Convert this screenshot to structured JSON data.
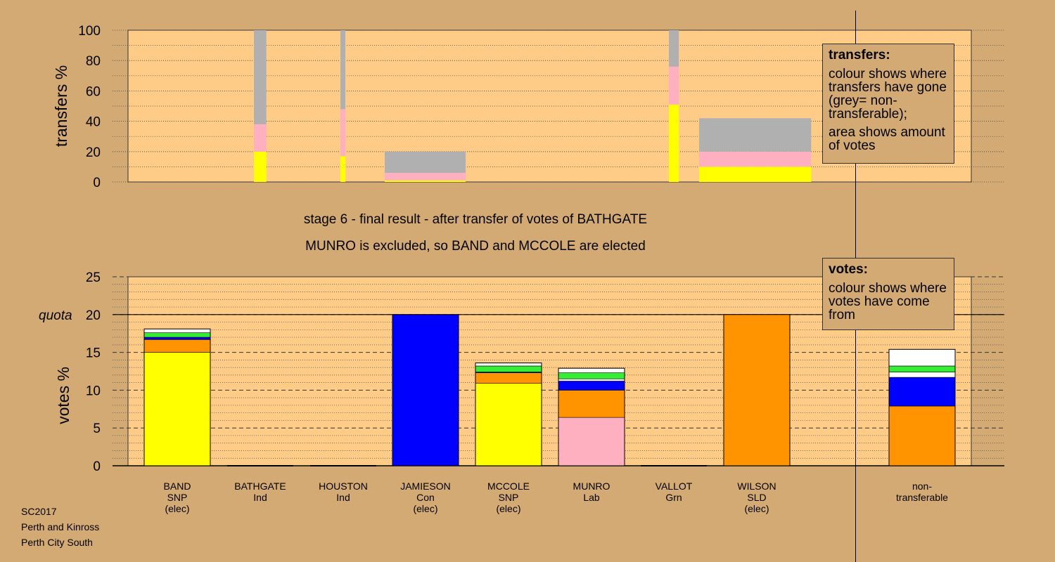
{
  "colors": {
    "background": "#d4aa74",
    "plot_area": "#ffcc88",
    "yellow": "#ffff00",
    "pink": "#ffb0c0",
    "grey": "#b0b0b0",
    "blue": "#0000ff",
    "orange": "#ff9400",
    "green": "#33ee33",
    "white": "#ffffff",
    "black": "#000000"
  },
  "captions": {
    "line1": "stage 6 - final result - after transfer of votes of BATHGATE",
    "line2": "MUNRO is excluded, so BAND and MCCOLE are elected"
  },
  "legends": {
    "transfers": {
      "title": "transfers:",
      "text1": "colour shows where transfers have gone (grey= non-transferable);",
      "text2": "area shows amount of votes"
    },
    "votes": {
      "title": "votes:",
      "text1": "colour shows where votes have come from"
    }
  },
  "footer": {
    "line1": "SC2017",
    "line2": "Perth and Kinross",
    "line3": "Perth City South"
  },
  "candidates": [
    {
      "name": "BAND",
      "party": "SNP",
      "status": "(elec)"
    },
    {
      "name": "BATHGATE",
      "party": "Ind",
      "status": ""
    },
    {
      "name": "HOUSTON",
      "party": "Ind",
      "status": ""
    },
    {
      "name": "JAMIESON",
      "party": "Con",
      "status": "(elec)"
    },
    {
      "name": "MCCOLE",
      "party": "SNP",
      "status": "(elec)"
    },
    {
      "name": "MUNRO",
      "party": "Lab",
      "status": ""
    },
    {
      "name": "VALLOT",
      "party": "Grn",
      "status": ""
    },
    {
      "name": "WILSON",
      "party": "SLD",
      "status": "(elec)"
    },
    {
      "name": "non-",
      "party": "transferable",
      "status": ""
    }
  ],
  "chart_data": [
    {
      "type": "bar",
      "ylabel": "transfers %",
      "ylim": [
        0,
        100
      ],
      "yticks": [
        0,
        20,
        40,
        60,
        80,
        100
      ],
      "grid": true,
      "note": "stacked transfer bars; bar width proportional to amount of votes transferred",
      "bars": [
        {
          "relative_width": 1.0,
          "segments": [
            {
              "color": "yellow",
              "value": 20
            },
            {
              "color": "pink",
              "value": 18
            },
            {
              "color": "grey",
              "value": 62
            }
          ]
        },
        {
          "relative_width": 0.4,
          "segments": [
            {
              "color": "yellow",
              "value": 17
            },
            {
              "color": "pink",
              "value": 31
            },
            {
              "color": "grey",
              "value": 52
            }
          ]
        },
        {
          "relative_width": 6.5,
          "segments": [
            {
              "color": "yellow",
              "value": 1
            },
            {
              "color": "pink",
              "value": 5
            },
            {
              "color": "grey",
              "value": 14
            }
          ]
        },
        {
          "relative_width": 0.8,
          "segments": [
            {
              "color": "yellow",
              "value": 51
            },
            {
              "color": "pink",
              "value": 25
            },
            {
              "color": "grey",
              "value": 24
            }
          ]
        },
        {
          "relative_width": 9.0,
          "segments": [
            {
              "color": "yellow",
              "value": 10
            },
            {
              "color": "pink",
              "value": 10
            },
            {
              "color": "grey",
              "value": 22
            }
          ]
        }
      ]
    },
    {
      "type": "bar",
      "ylabel": "votes %",
      "ylim": [
        0,
        25
      ],
      "yticks": [
        0,
        5,
        10,
        15,
        20,
        25
      ],
      "quota": {
        "label": "quota",
        "value": 20
      },
      "grid": true,
      "categories": [
        "BAND",
        "BATHGATE",
        "HOUSTON",
        "JAMIESON",
        "MCCOLE",
        "MUNRO",
        "VALLOT",
        "WILSON",
        "non-transferable"
      ],
      "stacks": [
        [
          {
            "color": "yellow",
            "value": 15.0
          },
          {
            "color": "orange",
            "value": 1.7
          },
          {
            "color": "blue",
            "value": 0.3
          },
          {
            "color": "green",
            "value": 0.6
          },
          {
            "color": "white",
            "value": 0.5
          }
        ],
        [],
        [],
        [
          {
            "color": "blue",
            "value": 20.0
          }
        ],
        [
          {
            "color": "yellow",
            "value": 10.9
          },
          {
            "color": "orange",
            "value": 1.4
          },
          {
            "color": "blue",
            "value": 0.1
          },
          {
            "color": "green",
            "value": 0.8
          },
          {
            "color": "white",
            "value": 0.4
          }
        ],
        [
          {
            "color": "pink",
            "value": 6.4
          },
          {
            "color": "orange",
            "value": 3.6
          },
          {
            "color": "blue",
            "value": 1.2
          },
          {
            "color": "white",
            "value": 0.3
          },
          {
            "color": "green",
            "value": 0.8
          },
          {
            "color": "white",
            "value": 0.6
          }
        ],
        [],
        [
          {
            "color": "orange",
            "value": 20.0
          }
        ],
        [
          {
            "color": "orange",
            "value": 7.9
          },
          {
            "color": "blue",
            "value": 3.8
          },
          {
            "color": "white",
            "value": 0.7
          },
          {
            "color": "green",
            "value": 0.8
          },
          {
            "color": "white",
            "value": 2.2
          }
        ]
      ]
    }
  ]
}
